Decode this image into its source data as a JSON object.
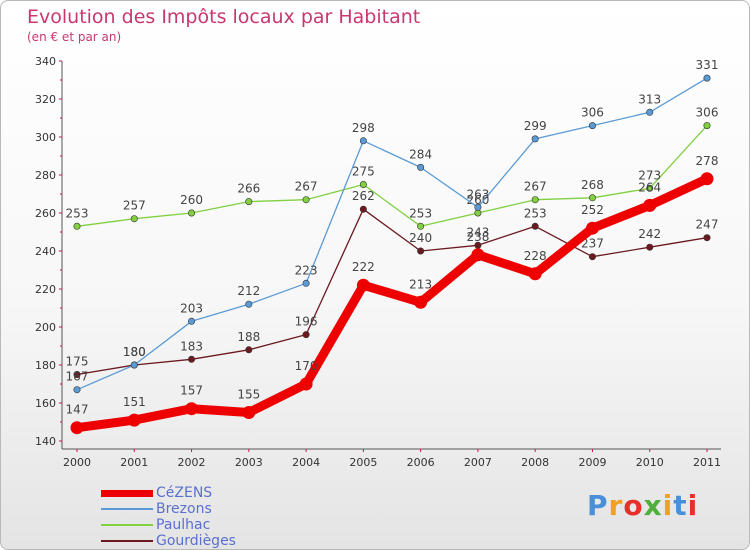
{
  "header": {
    "title": "Evolution des Impôts locaux par Habitant",
    "subtitle": "(en € et par an)"
  },
  "colors": {
    "title": "#c8386e",
    "legend_text": "#5a6fcf",
    "axis": "#d01050"
  },
  "logo": {
    "text": "Proxiti",
    "colors": [
      "#4a90d9",
      "#f2a023",
      "#e8302a",
      "#4fae3c",
      "#f2a023",
      "#4a90d9",
      "#e8302a"
    ]
  },
  "chart_data": {
    "type": "line",
    "title": "Evolution des Impôts locaux par Habitant",
    "subtitle": "(en € et par an)",
    "xlabel": "",
    "ylabel": "",
    "categories": [
      "2000",
      "2001",
      "2002",
      "2003",
      "2004",
      "2005",
      "2006",
      "2007",
      "2008",
      "2009",
      "2010",
      "2011"
    ],
    "ylim": [
      140,
      340
    ],
    "yticks": [
      140,
      160,
      180,
      200,
      220,
      240,
      260,
      280,
      300,
      320,
      340
    ],
    "grid": false,
    "legend_position": "bottom-left",
    "series": [
      {
        "name": "Gourdièges",
        "color": "#6b1a20",
        "values": [
          175,
          180,
          183,
          188,
          196,
          262,
          240,
          243,
          253,
          237,
          242,
          247
        ],
        "labels": [
          "175",
          "180",
          "183",
          "188",
          "196",
          "262",
          "240",
          "243",
          "253",
          "237",
          "242",
          "247"
        ]
      },
      {
        "name": "Paulhac",
        "color": "#80d040",
        "values": [
          253,
          257,
          260,
          266,
          267,
          275,
          253,
          260,
          267,
          268,
          273,
          306
        ],
        "labels": [
          "253",
          "257",
          "260",
          "266",
          "267",
          "275",
          "253",
          "260",
          "267",
          "268",
          "273",
          "306"
        ]
      },
      {
        "name": "Brezons",
        "color": "#5b9bd5",
        "values": [
          167,
          180,
          203,
          212,
          223,
          298,
          284,
          263,
          299,
          306,
          313,
          331
        ],
        "labels": [
          "167",
          "180",
          "203",
          "212",
          "223",
          "298",
          "284",
          "263",
          "299",
          "306",
          "313",
          "331"
        ]
      },
      {
        "name": "CéZENS",
        "color": "#ee0000",
        "values": [
          147,
          151,
          157,
          155,
          170,
          222,
          213,
          238,
          228,
          252,
          264,
          278
        ],
        "labels": [
          "147",
          "151",
          "157",
          "155",
          "170",
          "222",
          "213",
          "238",
          "228",
          "252",
          "264",
          "278"
        ]
      }
    ],
    "legend_order": [
      "CéZENS",
      "Brezons",
      "Paulhac",
      "Gourdièges"
    ]
  }
}
